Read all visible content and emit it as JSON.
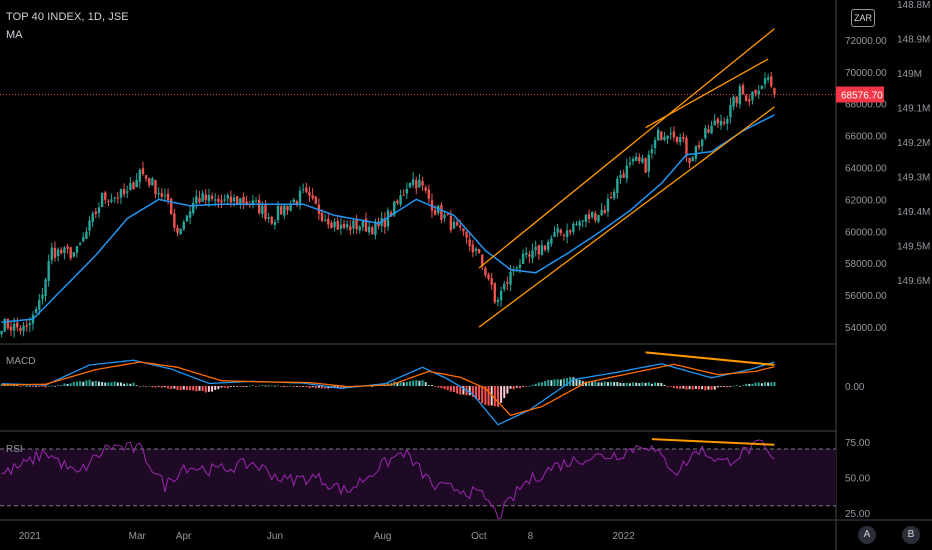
{
  "header": {
    "title": "TOP 40 INDEX, 1D, JSE",
    "indicator": "MA",
    "currency": "ZAR"
  },
  "panes": {
    "macd_label": "MACD",
    "rsi_label": "RSI"
  },
  "colors": {
    "up": "#26a69a",
    "down": "#ef5350",
    "ma": "#2196f3",
    "channel": "#ff9800",
    "macd_line": "#2196f3",
    "signal_line": "#ff6d00",
    "rsi_line": "#9c27b0",
    "rsi_band": "#1f0a26",
    "last_price": "#f23645"
  },
  "bottom_buttons": [
    "A",
    "B"
  ],
  "chart_data": [
    {
      "type": "candlestick",
      "title": "TOP 40 INDEX, 1D, JSE",
      "y_ticks": [
        "54000.00",
        "56000.00",
        "58000.00",
        "60000.00",
        "62000.00",
        "64000.00",
        "66000.00",
        "68000.00",
        "70000.00",
        "72000.00"
      ],
      "volume_ticks": [
        "148.8M",
        "148.9M",
        "149M",
        "149.1M",
        "149.2M",
        "149.3M",
        "149.4M",
        "149.5M",
        "149.6M"
      ],
      "x_ticks": [
        "2021",
        "Mar",
        "Apr",
        "Jun",
        "Aug",
        "Oct",
        "8",
        "2022"
      ],
      "ylim": [
        53000,
        74500
      ],
      "last_price": "68576.70",
      "close_path": [
        [
          0,
          54200
        ],
        [
          8,
          53800
        ],
        [
          12,
          55400
        ],
        [
          16,
          58800
        ],
        [
          20,
          58600
        ],
        [
          24,
          58700
        ],
        [
          28,
          60300
        ],
        [
          32,
          62100
        ],
        [
          40,
          62300
        ],
        [
          44,
          63800
        ],
        [
          52,
          62100
        ],
        [
          56,
          60000
        ],
        [
          62,
          62100
        ],
        [
          70,
          61800
        ],
        [
          76,
          62000
        ],
        [
          82,
          61500
        ],
        [
          86,
          60800
        ],
        [
          90,
          61500
        ],
        [
          96,
          62300
        ],
        [
          102,
          61100
        ],
        [
          108,
          60200
        ],
        [
          114,
          60400
        ],
        [
          120,
          60200
        ],
        [
          126,
          61700
        ],
        [
          130,
          63300
        ],
        [
          133,
          63000
        ],
        [
          138,
          61400
        ],
        [
          142,
          60700
        ],
        [
          146,
          59800
        ],
        [
          151,
          58700
        ],
        [
          155,
          57100
        ],
        [
          157,
          55500
        ],
        [
          160,
          56500
        ],
        [
          164,
          58000
        ],
        [
          168,
          58300
        ],
        [
          172,
          59000
        ],
        [
          176,
          59700
        ],
        [
          180,
          60100
        ],
        [
          186,
          60800
        ],
        [
          192,
          61400
        ],
        [
          197,
          63600
        ],
        [
          202,
          64300
        ],
        [
          205,
          64100
        ],
        [
          209,
          66000
        ],
        [
          213,
          66500
        ],
        [
          216,
          65800
        ],
        [
          219,
          64600
        ],
        [
          223,
          65800
        ],
        [
          227,
          66700
        ],
        [
          231,
          67300
        ],
        [
          235,
          68700
        ],
        [
          238,
          68400
        ],
        [
          241,
          69200
        ],
        [
          244,
          69600
        ],
        [
          246,
          68600
        ]
      ],
      "ma_path": [
        [
          0,
          54300
        ],
        [
          10,
          54500
        ],
        [
          20,
          56500
        ],
        [
          30,
          58500
        ],
        [
          40,
          60800
        ],
        [
          50,
          62000
        ],
        [
          60,
          61600
        ],
        [
          70,
          61700
        ],
        [
          82,
          61700
        ],
        [
          96,
          61700
        ],
        [
          106,
          61000
        ],
        [
          120,
          60500
        ],
        [
          132,
          62000
        ],
        [
          144,
          61000
        ],
        [
          154,
          58800
        ],
        [
          162,
          57600
        ],
        [
          170,
          57400
        ],
        [
          180,
          58600
        ],
        [
          190,
          59900
        ],
        [
          200,
          61300
        ],
        [
          210,
          63000
        ],
        [
          218,
          64800
        ],
        [
          226,
          65000
        ],
        [
          236,
          66300
        ],
        [
          246,
          67300
        ]
      ],
      "channel_lines": [
        {
          "from": [
            152,
            57700
          ],
          "to": [
            246,
            72700
          ]
        },
        {
          "from": [
            152,
            54000
          ],
          "to": [
            246,
            67800
          ]
        },
        {
          "from": [
            205,
            66500
          ],
          "to": [
            244,
            70800
          ]
        }
      ]
    },
    {
      "type": "line",
      "title": "MACD",
      "y_ticks": [
        "0.00"
      ],
      "ylim": [
        -1500,
        1400
      ],
      "series": [
        {
          "values_path": [
            [
              0,
              80
            ],
            [
              14,
              30
            ],
            [
              28,
              720
            ],
            [
              42,
              880
            ],
            [
              54,
              580
            ],
            [
              66,
              90
            ],
            [
              80,
              160
            ],
            [
              96,
              100
            ],
            [
              108,
              -80
            ],
            [
              122,
              80
            ],
            [
              134,
              640
            ],
            [
              142,
              240
            ],
            [
              150,
              -280
            ],
            [
              158,
              -1320
            ],
            [
              168,
              -820
            ],
            [
              182,
              220
            ],
            [
              196,
              470
            ],
            [
              210,
              760
            ],
            [
              226,
              280
            ],
            [
              238,
              560
            ],
            [
              246,
              820
            ]
          ]
        },
        {
          "values_path": [
            [
              0,
              40
            ],
            [
              14,
              60
            ],
            [
              30,
              560
            ],
            [
              44,
              820
            ],
            [
              56,
              640
            ],
            [
              70,
              180
            ],
            [
              84,
              140
            ],
            [
              98,
              120
            ],
            [
              110,
              -20
            ],
            [
              124,
              40
            ],
            [
              136,
              500
            ],
            [
              146,
              300
            ],
            [
              154,
              -80
            ],
            [
              162,
              -1000
            ],
            [
              172,
              -700
            ],
            [
              186,
              120
            ],
            [
              200,
              430
            ],
            [
              214,
              740
            ],
            [
              228,
              390
            ],
            [
              240,
              500
            ],
            [
              246,
              660
            ]
          ]
        }
      ],
      "divergence_line": {
        "from": [
          205,
          1150
        ],
        "to": [
          246,
          720
        ]
      }
    },
    {
      "type": "line",
      "title": "RSI",
      "y_ticks": [
        "25.00",
        "50.00",
        "75.00"
      ],
      "ylim": [
        20,
        82
      ],
      "band": [
        30,
        70
      ],
      "values_path": [
        [
          0,
          52
        ],
        [
          8,
          60
        ],
        [
          14,
          68
        ],
        [
          24,
          52
        ],
        [
          34,
          72
        ],
        [
          44,
          70
        ],
        [
          52,
          44
        ],
        [
          58,
          58
        ],
        [
          68,
          55
        ],
        [
          80,
          60
        ],
        [
          90,
          48
        ],
        [
          100,
          50
        ],
        [
          110,
          40
        ],
        [
          120,
          57
        ],
        [
          128,
          68
        ],
        [
          138,
          43
        ],
        [
          146,
          42
        ],
        [
          154,
          36
        ],
        [
          158,
          22
        ],
        [
          166,
          45
        ],
        [
          176,
          58
        ],
        [
          186,
          64
        ],
        [
          196,
          66
        ],
        [
          205,
          74
        ],
        [
          215,
          54
        ],
        [
          222,
          70
        ],
        [
          230,
          60
        ],
        [
          238,
          70
        ],
        [
          242,
          73
        ],
        [
          246,
          60
        ]
      ],
      "divergence_line": {
        "from": [
          207,
          77
        ],
        "to": [
          246,
          73
        ]
      }
    }
  ]
}
